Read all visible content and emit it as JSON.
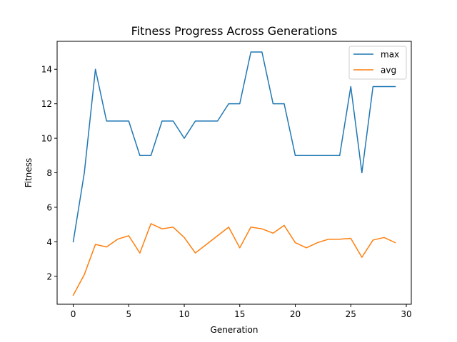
{
  "chart_data": {
    "type": "line",
    "title": "Fitness Progress Across Generations",
    "xlabel": "Generation",
    "ylabel": "Fitness",
    "xlim": [
      -1.45,
      30.45
    ],
    "ylim": [
      0.38,
      15.62
    ],
    "xticks": [
      0,
      5,
      10,
      15,
      20,
      25,
      30
    ],
    "yticks": [
      2,
      4,
      6,
      8,
      10,
      12,
      14
    ],
    "grid": false,
    "legend_position": "top-right",
    "x": [
      0,
      1,
      2,
      3,
      4,
      5,
      6,
      7,
      8,
      9,
      10,
      11,
      12,
      13,
      14,
      15,
      16,
      17,
      18,
      19,
      20,
      21,
      22,
      23,
      24,
      25,
      26,
      27,
      28,
      29
    ],
    "series": [
      {
        "name": "max",
        "color": "#1f77b4",
        "values": [
          4,
          8,
          14,
          11,
          11,
          11,
          9,
          9,
          11,
          11,
          10,
          11,
          11,
          11,
          12,
          12,
          15,
          15,
          12,
          12,
          9,
          9,
          9,
          9,
          9,
          13,
          8,
          13,
          13,
          13
        ]
      },
      {
        "name": "avg",
        "color": "#ff7f0e",
        "values": [
          0.9,
          2.1,
          3.85,
          3.7,
          4.15,
          4.35,
          3.35,
          5.05,
          4.75,
          4.85,
          4.25,
          3.35,
          3.85,
          4.35,
          4.85,
          3.65,
          4.85,
          4.75,
          4.5,
          4.95,
          3.95,
          3.65,
          3.95,
          4.15,
          4.15,
          4.2,
          3.1,
          4.1,
          4.25,
          3.95
        ]
      }
    ]
  }
}
